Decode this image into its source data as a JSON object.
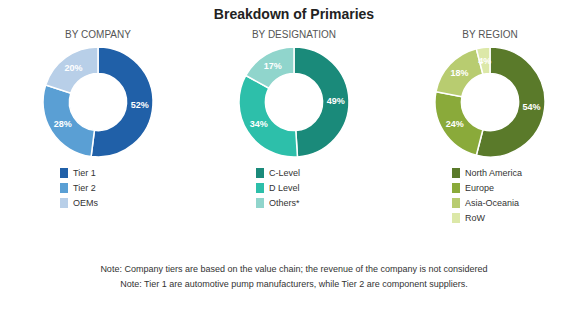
{
  "title": "Breakdown of Primaries",
  "annotations": [
    "Note: Company tiers are based on the value chain; the revenue of the company is not considered",
    "Note: Tier 1 are automotive pump manufacturers, while Tier 2 are component suppliers."
  ],
  "chart_data": [
    {
      "type": "pie",
      "title": "BY COMPANY",
      "categories": [
        "Tier 1",
        "Tier 2",
        "OEMs"
      ],
      "values": [
        52,
        28,
        20
      ],
      "value_labels": [
        "52%",
        "28%",
        "20%"
      ],
      "colors": [
        "#2060a8",
        "#5a9fd4",
        "#b8cfe8"
      ],
      "data_labels": true,
      "legend": "bottom"
    },
    {
      "type": "pie",
      "title": "BY DESIGNATION",
      "categories": [
        "C-Level",
        "D Level",
        "Others*"
      ],
      "values": [
        49,
        34,
        17
      ],
      "value_labels": [
        "49%",
        "34%",
        "17%"
      ],
      "colors": [
        "#1a8a7a",
        "#2dbfaa",
        "#90d5cc"
      ],
      "data_labels": true,
      "legend": "bottom"
    },
    {
      "type": "pie",
      "title": "BY REGION",
      "categories": [
        "North America",
        "Europe",
        "Asia-Oceania",
        "RoW"
      ],
      "values": [
        54,
        24,
        18,
        4
      ],
      "value_labels": [
        "54%",
        "24%",
        "18%",
        "4%"
      ],
      "colors": [
        "#5a7a2a",
        "#8aaa3a",
        "#b8cc70",
        "#dce8a8"
      ],
      "data_labels": true,
      "legend": "bottom"
    }
  ]
}
